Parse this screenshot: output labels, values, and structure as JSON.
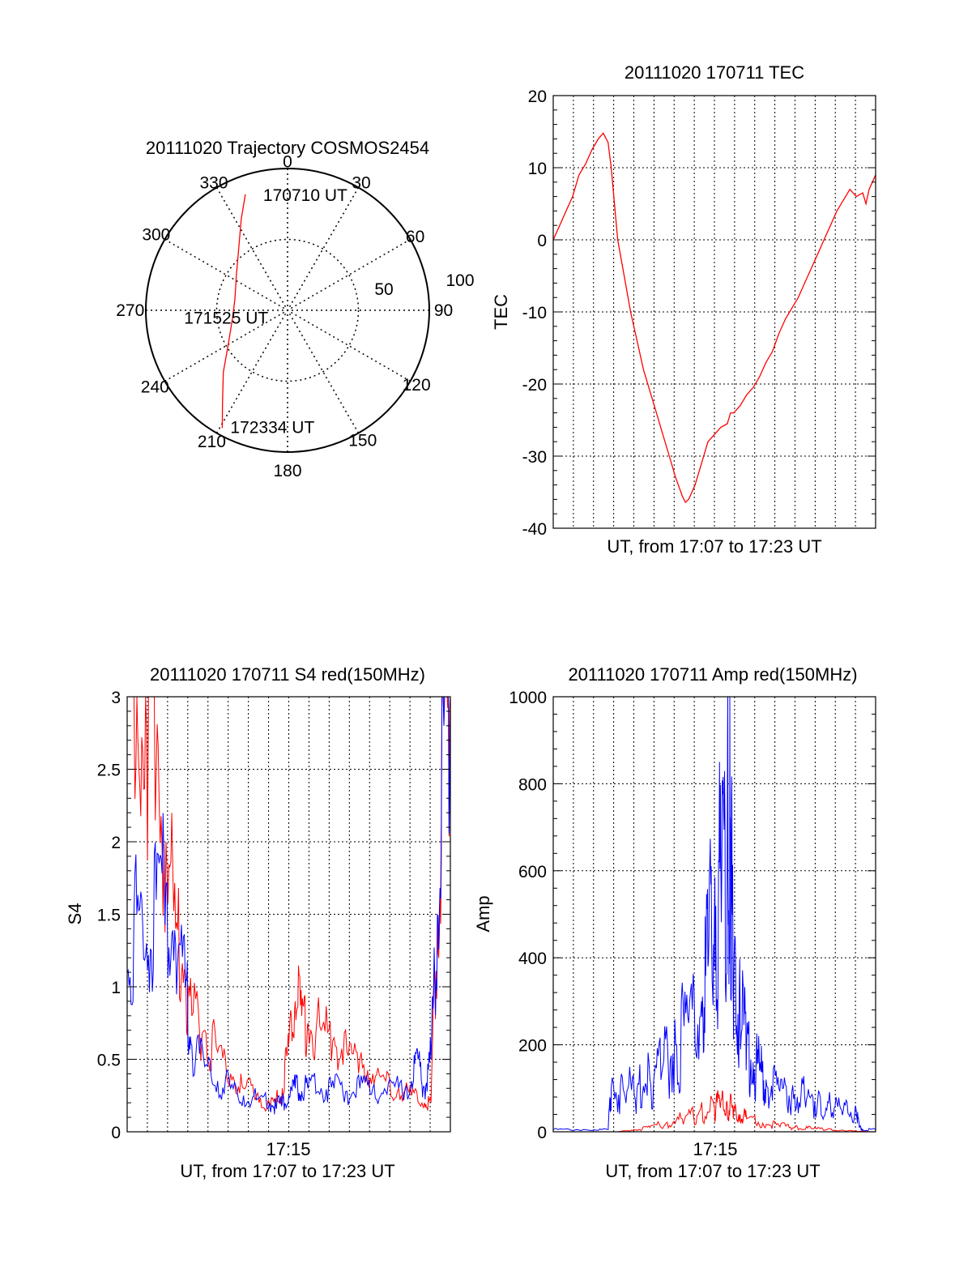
{
  "chart_data": [
    {
      "type": "polar",
      "title": "20111020 Trajectory COSMOS2454",
      "angle_labels": [
        "0",
        "30",
        "60",
        "90",
        "120",
        "150",
        "180",
        "210",
        "240",
        "270",
        "300",
        "330"
      ],
      "radial_labels": [
        "50",
        "100"
      ],
      "grid": true,
      "series": [
        {
          "color": "#ff0000",
          "points": [
            {
              "az": 340,
              "zen": 87
            },
            {
              "az": 333,
              "zen": 72
            },
            {
              "az": 323,
              "zen": 57
            },
            {
              "az": 305,
              "zen": 44
            },
            {
              "az": 282,
              "zen": 38
            },
            {
              "az": 263,
              "zen": 39
            },
            {
              "az": 242,
              "zen": 47
            },
            {
              "az": 226,
              "zen": 63
            },
            {
              "az": 215,
              "zen": 80
            },
            {
              "az": 209,
              "zen": 95
            }
          ]
        }
      ],
      "annotations": [
        {
          "text": "170710 UT",
          "az": 340,
          "zen": 87
        },
        {
          "text": "171525 UT",
          "az": 263,
          "zen": 39
        },
        {
          "text": "172334 UT",
          "az": 209,
          "zen": 95
        }
      ]
    },
    {
      "type": "line",
      "title": "20111020 170711 TEC",
      "xlabel": "UT, from 17:07 to 17:23 UT",
      "ylabel": "TEC",
      "xlim": [
        0,
        100
      ],
      "ylim": [
        -40,
        20
      ],
      "yticks": [
        "20",
        "10",
        "0",
        "-10",
        "-20",
        "-30",
        "-40"
      ],
      "grid": true,
      "series": [
        {
          "color": "#ff0000",
          "x": [
            0,
            2,
            4,
            6,
            8,
            10,
            12,
            14,
            15.5,
            17,
            18,
            20,
            22,
            24,
            26,
            28,
            30,
            32,
            34,
            36,
            38,
            40,
            41,
            42,
            44,
            46,
            48,
            50,
            52,
            54,
            55,
            56,
            57,
            58,
            60,
            62,
            64,
            66,
            68,
            70,
            72,
            74,
            76,
            78,
            80,
            82,
            84,
            86,
            88,
            90,
            92,
            94,
            96,
            97,
            98,
            99,
            100
          ],
          "y": [
            0,
            2,
            4,
            6,
            9,
            10.5,
            12.5,
            14,
            14.8,
            13.5,
            10,
            0,
            -5,
            -10,
            -14,
            -18,
            -21,
            -24,
            -27,
            -30,
            -33,
            -35.5,
            -36.4,
            -36,
            -34,
            -31,
            -28,
            -27,
            -26,
            -25.5,
            -24,
            -24,
            -23.5,
            -23,
            -21.5,
            -20.5,
            -19,
            -17,
            -15.5,
            -13,
            -11,
            -9.5,
            -8,
            -6,
            -4,
            -2,
            0,
            2,
            4,
            5.5,
            7,
            6,
            6.5,
            5,
            7,
            8,
            9
          ]
        }
      ]
    },
    {
      "type": "line",
      "title": "20111020 170711 S4 red(150MHz)",
      "xlabel": "UT, from 17:07 to 17:23 UT",
      "ylabel": "S4",
      "xtick_label": "17:15",
      "xlim": [
        0,
        100
      ],
      "ylim": [
        0,
        3
      ],
      "yticks": [
        "0",
        "0.5",
        "1",
        "1.5",
        "2",
        "2.5",
        "3"
      ],
      "grid": true,
      "series": [
        {
          "color": "#ff0000",
          "x": [
            0,
            3,
            6,
            9,
            12,
            15,
            18,
            20,
            24,
            28,
            32,
            36,
            40,
            44,
            46,
            48,
            50,
            52,
            54,
            56,
            60,
            64,
            68,
            72,
            76,
            80,
            84,
            88,
            92,
            94,
            96,
            98,
            100
          ],
          "y": [
            3,
            3,
            2.8,
            2.5,
            2,
            1.4,
            1.1,
            0.8,
            0.7,
            0.55,
            0.4,
            0.3,
            0.25,
            0.2,
            0.2,
            0.3,
            0.6,
            0.9,
            0.8,
            0.75,
            0.7,
            0.65,
            0.55,
            0.5,
            0.4,
            0.35,
            0.3,
            0.25,
            0.2,
            0.2,
            1.5,
            2.8,
            3
          ]
        },
        {
          "color": "#0000ff",
          "x": [
            0,
            3,
            6,
            9,
            12,
            15,
            18,
            20,
            24,
            28,
            32,
            36,
            40,
            44,
            46,
            48,
            50,
            52,
            54,
            56,
            60,
            64,
            68,
            72,
            76,
            80,
            84,
            88,
            90,
            92,
            94,
            96,
            98,
            100
          ],
          "y": [
            1.1,
            1.5,
            1.3,
            1.6,
            1.7,
            1.3,
            1.0,
            0.6,
            0.45,
            0.35,
            0.3,
            0.25,
            0.22,
            0.2,
            0.18,
            0.2,
            0.25,
            0.3,
            0.28,
            0.3,
            0.3,
            0.3,
            0.28,
            0.3,
            0.3,
            0.28,
            0.3,
            0.35,
            0.5,
            0.3,
            0.5,
            1.5,
            2.8,
            3
          ]
        }
      ]
    },
    {
      "type": "line",
      "title": "20111020 170711 Amp red(150MHz)",
      "xlabel": "UT, from 17:07 to 17:23 UT",
      "ylabel": "Amp",
      "xtick_label": "17:15",
      "xlim": [
        0,
        100
      ],
      "ylim": [
        0,
        1000
      ],
      "yticks": [
        "0",
        "200",
        "400",
        "600",
        "800",
        "1000"
      ],
      "grid": true,
      "series": [
        {
          "color": "#0000ff",
          "x": [
            0,
            10,
            17,
            18,
            22,
            26,
            30,
            34,
            38,
            42,
            46,
            48,
            50,
            52,
            54,
            55,
            56,
            58,
            60,
            62,
            64,
            66,
            70,
            74,
            78,
            82,
            86,
            90,
            94,
            95,
            96,
            100
          ],
          "y": [
            5,
            5,
            5,
            100,
            90,
            100,
            120,
            150,
            200,
            250,
            300,
            380,
            500,
            600,
            700,
            680,
            350,
            250,
            200,
            160,
            140,
            120,
            100,
            90,
            80,
            70,
            60,
            50,
            50,
            10,
            5,
            5
          ]
        },
        {
          "color": "#ff0000",
          "x": [
            0,
            20,
            25,
            30,
            35,
            40,
            45,
            50,
            52,
            54,
            56,
            58,
            60,
            65,
            70,
            75,
            80,
            85,
            90,
            95,
            100
          ],
          "y": [
            0,
            0,
            5,
            10,
            20,
            30,
            40,
            55,
            70,
            60,
            50,
            40,
            30,
            20,
            15,
            10,
            8,
            5,
            3,
            1,
            0
          ]
        }
      ]
    }
  ]
}
